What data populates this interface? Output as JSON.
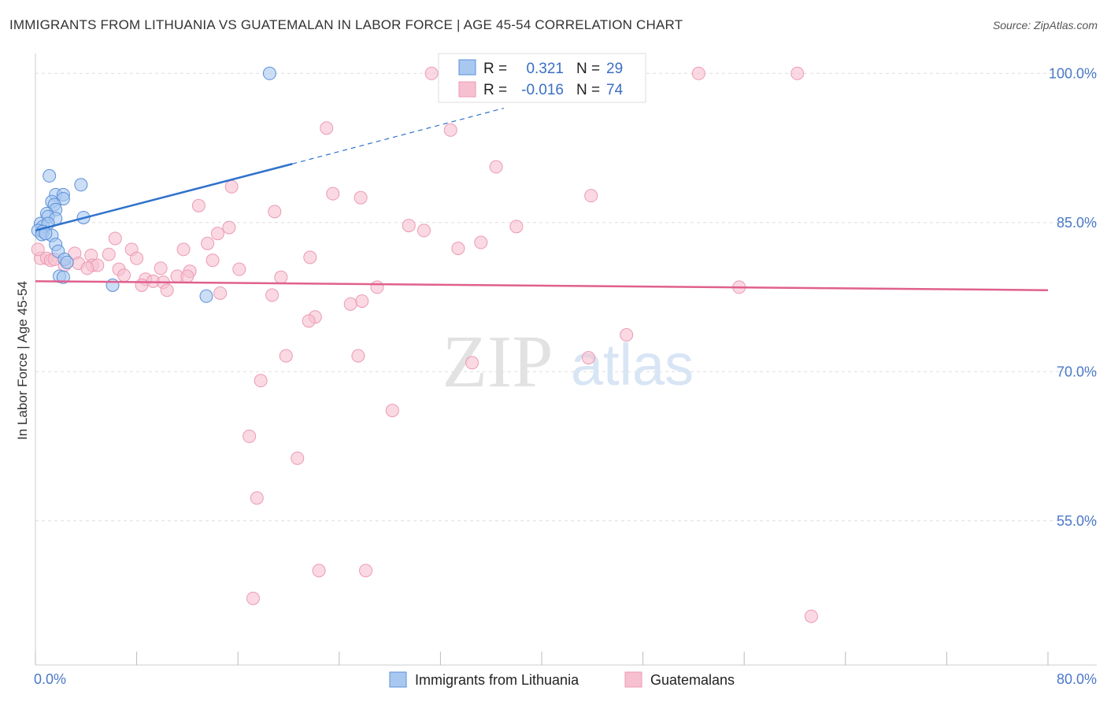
{
  "title": "IMMIGRANTS FROM LITHUANIA VS GUATEMALAN IN LABOR FORCE | AGE 45-54 CORRELATION CHART",
  "source": "Source: ZipAtlas.com",
  "watermark": {
    "zip": "ZIP",
    "atlas": "atlas"
  },
  "colors": {
    "blue_fill": "#a9c8f0",
    "blue_stroke": "#5b8fd8",
    "blue_line": "#2f72cc",
    "pink_fill": "#f6c0d1",
    "pink_stroke": "#ec9ab4",
    "pink_line": "#e0608e",
    "tick_text": "#4a78c8",
    "grid": "#dddddd"
  },
  "chart_data": {
    "type": "scatter",
    "title": "IMMIGRANTS FROM LITHUANIA VS GUATEMALAN IN LABOR FORCE | AGE 45-54 CORRELATION CHART",
    "xlabel": "",
    "ylabel": "In Labor Force | Age 45-54",
    "xlim": [
      0,
      80
    ],
    "ylim": [
      40.5,
      102
    ],
    "y_ticks": [
      {
        "value": 100,
        "label": "100.0%"
      },
      {
        "value": 85,
        "label": "85.0%"
      },
      {
        "value": 70,
        "label": "70.0%"
      },
      {
        "value": 55,
        "label": "55.0%"
      }
    ],
    "x_tick_labels": {
      "min": "0.0%",
      "max": "80.0%"
    },
    "x_tick_values": [
      0,
      8,
      16,
      24,
      32,
      40,
      48,
      56,
      64,
      72,
      80
    ],
    "legend": {
      "rows": [
        {
          "r_label": "R =",
          "r_value": "0.321",
          "n_label": "N =",
          "n_value": "29"
        },
        {
          "r_label": "R =",
          "r_value": "-0.016",
          "n_label": "N =",
          "n_value": "74"
        }
      ]
    },
    "series": [
      {
        "name": "Immigrants from Lithuania",
        "color": "blue",
        "r": 0.321,
        "n": 29,
        "trend": {
          "x0": 0,
          "y0": 84.2,
          "x1": 20.3,
          "y1": 90.9,
          "dash_to_x": 37,
          "dash_to_y": 96.5
        },
        "points": [
          [
            18.5,
            100.0
          ],
          [
            1.1,
            89.7
          ],
          [
            3.6,
            88.8
          ],
          [
            1.6,
            87.8
          ],
          [
            2.2,
            87.8
          ],
          [
            2.2,
            87.4
          ],
          [
            1.3,
            87.1
          ],
          [
            1.5,
            86.8
          ],
          [
            1.6,
            86.3
          ],
          [
            0.9,
            85.9
          ],
          [
            1.0,
            85.6
          ],
          [
            1.6,
            85.4
          ],
          [
            3.8,
            85.5
          ],
          [
            0.4,
            84.9
          ],
          [
            0.6,
            84.6
          ],
          [
            1.0,
            84.9
          ],
          [
            0.2,
            84.2
          ],
          [
            0.6,
            84.1
          ],
          [
            0.5,
            83.8
          ],
          [
            1.3,
            83.7
          ],
          [
            0.8,
            83.9
          ],
          [
            1.6,
            82.8
          ],
          [
            1.8,
            82.1
          ],
          [
            2.3,
            81.3
          ],
          [
            2.5,
            81.0
          ],
          [
            1.9,
            79.6
          ],
          [
            2.2,
            79.5
          ],
          [
            6.1,
            78.7
          ],
          [
            13.5,
            77.6
          ]
        ]
      },
      {
        "name": "Guatemalans",
        "color": "pink",
        "r": -0.016,
        "n": 74,
        "trend": {
          "x0": 0,
          "y0": 79.1,
          "x1": 80,
          "y1": 78.2
        },
        "points": [
          [
            31.3,
            100.0
          ],
          [
            52.4,
            100.0
          ],
          [
            60.2,
            100.0
          ],
          [
            23.0,
            94.5
          ],
          [
            32.8,
            94.3
          ],
          [
            36.4,
            90.6
          ],
          [
            15.5,
            88.6
          ],
          [
            23.5,
            87.9
          ],
          [
            25.7,
            87.5
          ],
          [
            43.9,
            87.7
          ],
          [
            12.9,
            86.7
          ],
          [
            18.9,
            86.1
          ],
          [
            29.5,
            84.7
          ],
          [
            30.7,
            84.2
          ],
          [
            38.0,
            84.6
          ],
          [
            15.3,
            84.5
          ],
          [
            14.4,
            83.9
          ],
          [
            6.3,
            83.4
          ],
          [
            35.2,
            83.0
          ],
          [
            13.6,
            82.9
          ],
          [
            33.4,
            82.4
          ],
          [
            11.7,
            82.3
          ],
          [
            7.6,
            82.3
          ],
          [
            21.7,
            81.5
          ],
          [
            3.1,
            81.9
          ],
          [
            4.4,
            81.7
          ],
          [
            5.8,
            81.8
          ],
          [
            8.0,
            81.4
          ],
          [
            14.0,
            81.2
          ],
          [
            0.4,
            81.4
          ],
          [
            0.9,
            81.4
          ],
          [
            1.2,
            81.2
          ],
          [
            1.5,
            81.3
          ],
          [
            2.3,
            80.7
          ],
          [
            3.4,
            80.9
          ],
          [
            4.5,
            80.7
          ],
          [
            4.9,
            80.7
          ],
          [
            4.1,
            80.4
          ],
          [
            6.6,
            80.3
          ],
          [
            9.9,
            80.4
          ],
          [
            16.1,
            80.3
          ],
          [
            12.2,
            80.1
          ],
          [
            7.0,
            79.7
          ],
          [
            11.2,
            79.6
          ],
          [
            12.0,
            79.6
          ],
          [
            19.4,
            79.5
          ],
          [
            8.7,
            79.3
          ],
          [
            9.3,
            79.1
          ],
          [
            10.1,
            79.0
          ],
          [
            8.4,
            78.7
          ],
          [
            10.4,
            78.2
          ],
          [
            14.6,
            77.9
          ],
          [
            18.7,
            77.7
          ],
          [
            27.0,
            78.5
          ],
          [
            25.8,
            77.1
          ],
          [
            24.9,
            76.8
          ],
          [
            22.1,
            75.5
          ],
          [
            21.6,
            75.1
          ],
          [
            55.6,
            78.5
          ],
          [
            46.7,
            73.7
          ],
          [
            19.8,
            71.6
          ],
          [
            25.5,
            71.6
          ],
          [
            34.5,
            70.9
          ],
          [
            43.7,
            71.4
          ],
          [
            17.8,
            69.1
          ],
          [
            28.2,
            66.1
          ],
          [
            16.9,
            63.5
          ],
          [
            20.7,
            61.3
          ],
          [
            17.5,
            57.3
          ],
          [
            22.4,
            50.0
          ],
          [
            26.1,
            50.0
          ],
          [
            17.2,
            47.2
          ],
          [
            61.3,
            45.4
          ],
          [
            0.2,
            82.3
          ]
        ]
      }
    ]
  }
}
